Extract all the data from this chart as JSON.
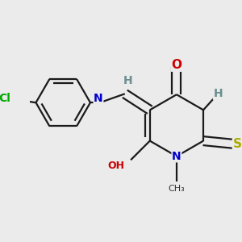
{
  "background_color": "#ebebeb",
  "bond_color": "#1a1a1a",
  "atom_colors": {
    "H": "#6b8e8e",
    "N": "#0000cc",
    "O": "#cc0000",
    "S": "#aaaa00",
    "Cl": "#00aa00"
  },
  "figsize": [
    3.0,
    3.0
  ],
  "dpi": 100
}
